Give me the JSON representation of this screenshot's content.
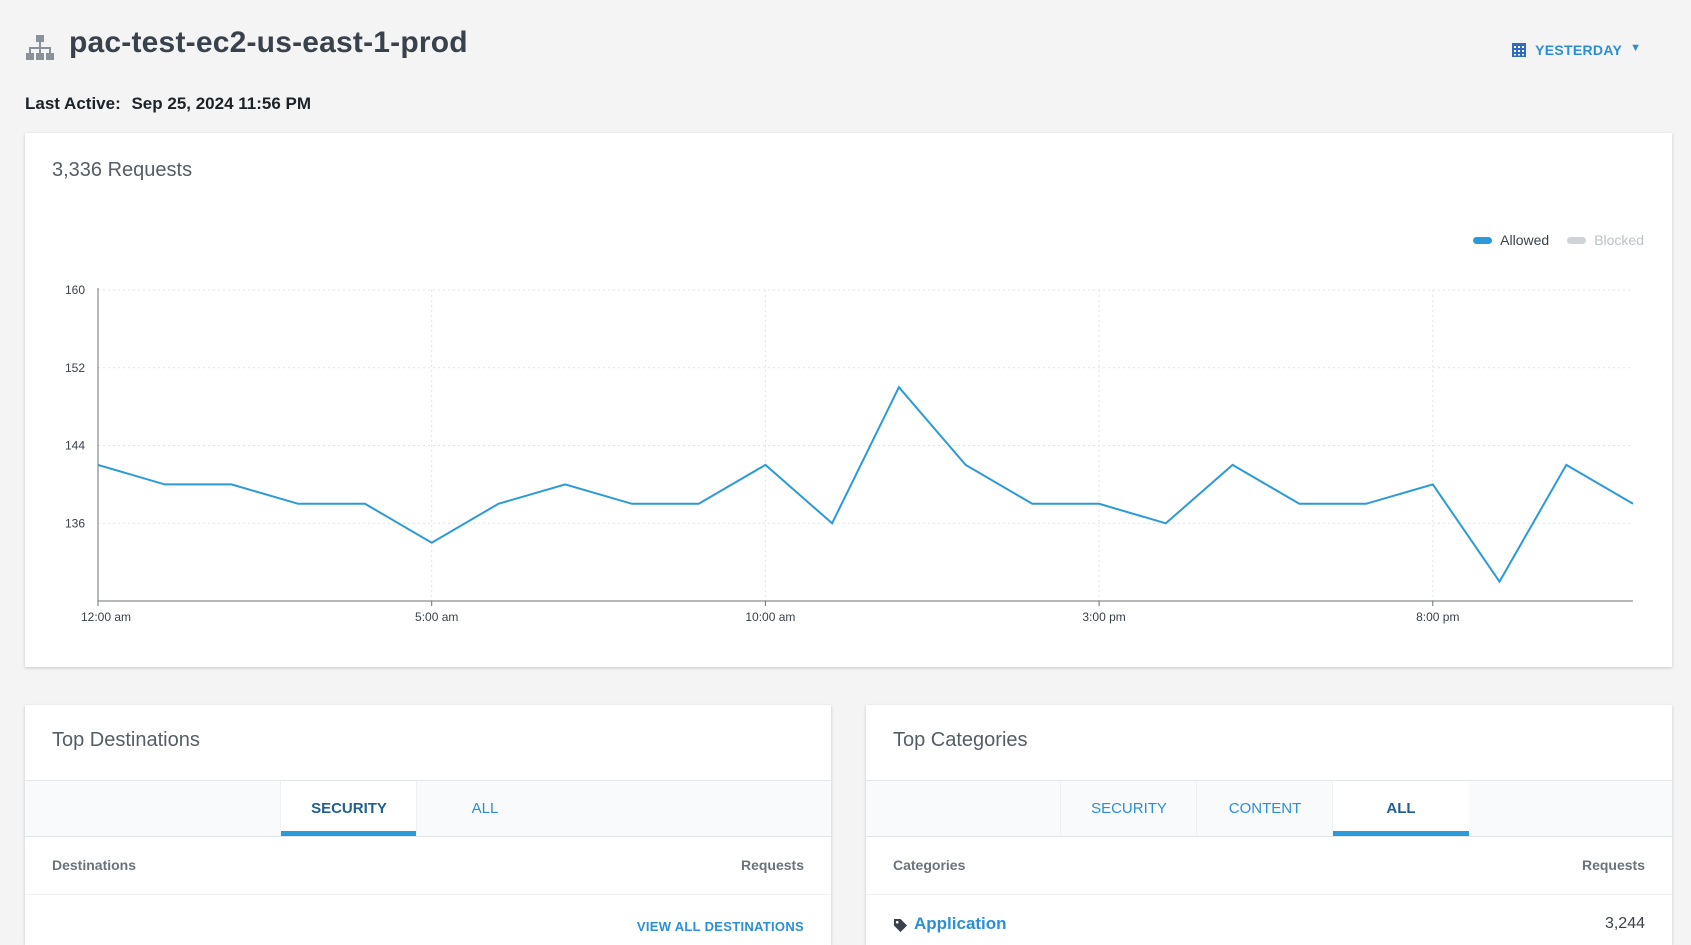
{
  "header": {
    "title": "pac-test-ec2-us-east-1-prod",
    "date_range": "YESTERDAY",
    "last_active_label": "Last Active:",
    "last_active_value": "Sep 25, 2024 11:56 PM"
  },
  "requests_card": {
    "title": "3,336 Requests",
    "legend": [
      {
        "name": "Allowed",
        "color": "#2b9ad8"
      },
      {
        "name": "Blocked",
        "color": "#cfd3d7"
      }
    ]
  },
  "chart_data": {
    "type": "line",
    "x_tick_labels": [
      "12:00 am",
      "5:00 am",
      "10:00 am",
      "3:00 pm",
      "8:00 pm"
    ],
    "y_tick_labels": [
      136,
      144,
      152,
      160
    ],
    "ylim": [
      128,
      160
    ],
    "series": [
      {
        "name": "Allowed",
        "values": [
          142,
          140,
          140,
          138,
          138,
          134,
          138,
          140,
          138,
          138,
          142,
          136,
          150,
          142,
          138,
          138,
          136,
          142,
          138,
          138,
          140,
          130,
          142,
          138
        ]
      }
    ],
    "grid": true
  },
  "top_destinations": {
    "title": "Top Destinations",
    "tabs": [
      {
        "label": "SECURITY",
        "active": true
      },
      {
        "label": "ALL",
        "active": false
      }
    ],
    "col_name": "Destinations",
    "col_value": "Requests",
    "view_all": "VIEW ALL DESTINATIONS"
  },
  "top_categories": {
    "title": "Top Categories",
    "tabs": [
      {
        "label": "SECURITY",
        "active": false
      },
      {
        "label": "CONTENT",
        "active": false
      },
      {
        "label": "ALL",
        "active": true
      }
    ],
    "col_name": "Categories",
    "col_value": "Requests",
    "rows": [
      {
        "name": "Application",
        "value": "3,244"
      }
    ]
  }
}
